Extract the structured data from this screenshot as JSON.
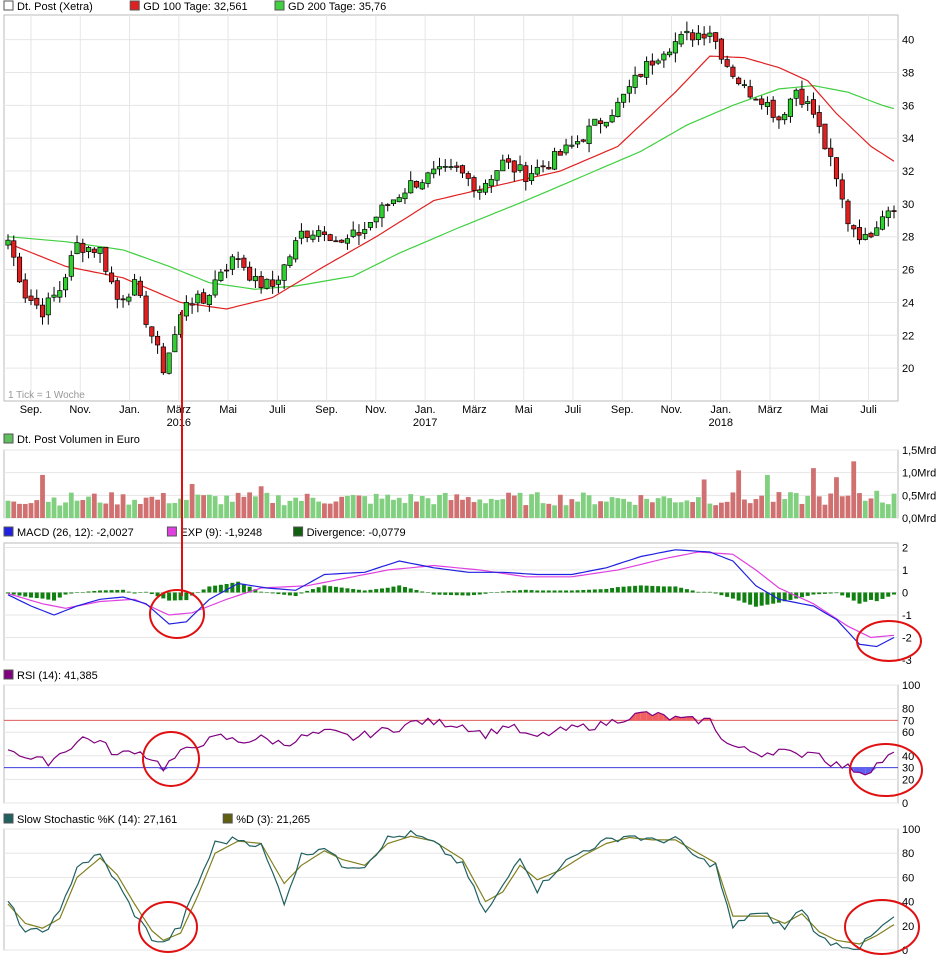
{
  "watermark": "1 Tick = 1 Woche",
  "chart_data": [
    {
      "type": "candlestick",
      "panel": "price",
      "legend": [
        {
          "label": "Dt. Post (Xetra)",
          "color": "#ffffff"
        },
        {
          "label": "GD 100 Tage: 32,561",
          "color": "#e02020"
        },
        {
          "label": "GD 200 Tage: 35,76",
          "color": "#40d040"
        }
      ],
      "y_ticks": [
        "20",
        "22",
        "24",
        "26",
        "28",
        "30",
        "32",
        "34",
        "36",
        "38",
        "40"
      ],
      "ylim": [
        18,
        41.5
      ],
      "x_month_labels": [
        "Sep.",
        "Nov.",
        "Jan.",
        "März",
        "Mai",
        "Juli",
        "Sep.",
        "Nov.",
        "Jan.",
        "März",
        "Mai",
        "Juli",
        "Sep.",
        "Nov.",
        "Jan.",
        "März",
        "Mai",
        "Juli"
      ],
      "x_year_labels": [
        {
          "text": "2016",
          "at_month": 3
        },
        {
          "text": "2017",
          "at_month": 8
        },
        {
          "text": "2018",
          "at_month": 14
        }
      ],
      "weeks": 155,
      "close_anchors": [
        [
          0,
          27.8
        ],
        [
          3,
          24.5
        ],
        [
          6,
          23.5
        ],
        [
          9,
          24.8
        ],
        [
          12,
          27.5
        ],
        [
          16,
          27.2
        ],
        [
          19,
          24.2
        ],
        [
          22,
          25.0
        ],
        [
          25,
          22.0
        ],
        [
          27,
          20.0
        ],
        [
          29,
          22.0
        ],
        [
          31,
          24.2
        ],
        [
          34,
          24.0
        ],
        [
          37,
          26.0
        ],
        [
          40,
          26.8
        ],
        [
          43,
          25.2
        ],
        [
          46,
          25.0
        ],
        [
          48,
          26.2
        ],
        [
          51,
          28.2
        ],
        [
          55,
          28.5
        ],
        [
          58,
          27.5
        ],
        [
          62,
          28.5
        ],
        [
          66,
          30.0
        ],
        [
          70,
          31.2
        ],
        [
          74,
          31.8
        ],
        [
          78,
          32.0
        ],
        [
          82,
          31.0
        ],
        [
          86,
          32.5
        ],
        [
          90,
          31.8
        ],
        [
          94,
          32.5
        ],
        [
          98,
          33.5
        ],
        [
          102,
          34.8
        ],
        [
          106,
          36.0
        ],
        [
          110,
          38.0
        ],
        [
          114,
          39.5
        ],
        [
          118,
          40.2
        ],
        [
          122,
          40.6
        ],
        [
          125,
          38.5
        ],
        [
          128,
          37.0
        ],
        [
          131,
          36.5
        ],
        [
          134,
          35.2
        ],
        [
          137,
          37.0
        ],
        [
          140,
          35.5
        ],
        [
          143,
          32.5
        ],
        [
          146,
          29.0
        ],
        [
          149,
          27.8
        ],
        [
          152,
          29.5
        ],
        [
          154,
          30.0
        ]
      ],
      "gd100_anchors": [
        [
          0,
          27.6
        ],
        [
          10,
          26.2
        ],
        [
          20,
          25.5
        ],
        [
          30,
          24.0
        ],
        [
          38,
          23.6
        ],
        [
          46,
          24.3
        ],
        [
          54,
          26.0
        ],
        [
          64,
          28.0
        ],
        [
          74,
          30.2
        ],
        [
          86,
          31.2
        ],
        [
          96,
          32.0
        ],
        [
          106,
          33.5
        ],
        [
          116,
          36.8
        ],
        [
          122,
          39.0
        ],
        [
          128,
          38.9
        ],
        [
          134,
          38.3
        ],
        [
          139,
          37.5
        ],
        [
          144,
          35.5
        ],
        [
          150,
          33.5
        ],
        [
          154,
          32.6
        ]
      ],
      "gd200_anchors": [
        [
          0,
          28.0
        ],
        [
          10,
          27.7
        ],
        [
          20,
          27.2
        ],
        [
          28,
          26.2
        ],
        [
          35,
          25.2
        ],
        [
          43,
          24.8
        ],
        [
          50,
          25.0
        ],
        [
          60,
          25.6
        ],
        [
          68,
          27.0
        ],
        [
          78,
          28.5
        ],
        [
          90,
          30.2
        ],
        [
          100,
          31.7
        ],
        [
          110,
          33.2
        ],
        [
          118,
          34.8
        ],
        [
          126,
          36.0
        ],
        [
          134,
          37.0
        ],
        [
          140,
          37.2
        ],
        [
          146,
          36.8
        ],
        [
          152,
          36.0
        ],
        [
          154,
          35.8
        ]
      ]
    },
    {
      "type": "bar",
      "panel": "volume",
      "legend": [
        {
          "label": "Dt. Post Volumen in Euro",
          "color": "#60c060"
        }
      ],
      "y_ticks": [
        "0,0Mrd",
        "0,5Mrd",
        "1,0Mrd",
        "1,5Mrd"
      ],
      "ylim": [
        0,
        1.5
      ],
      "base_level": 0.5,
      "spikes": [
        [
          6,
          0.95
        ],
        [
          32,
          0.75
        ],
        [
          44,
          0.7
        ],
        [
          121,
          0.85
        ],
        [
          127,
          1.05
        ],
        [
          132,
          0.95
        ],
        [
          140,
          1.1
        ],
        [
          144,
          0.9
        ],
        [
          147,
          1.25
        ],
        [
          151,
          0.6
        ]
      ]
    },
    {
      "type": "line",
      "panel": "macd",
      "legend": [
        {
          "label": "MACD (26, 12): -2,0027",
          "color": "#2020e0"
        },
        {
          "label": "EXP (9): -1,9248",
          "color": "#e040e0"
        },
        {
          "label": "Divergence: -0,0779",
          "color": "#106010"
        }
      ],
      "y_ticks": [
        "-3",
        "-2",
        "-1",
        "0",
        "1",
        "2"
      ],
      "ylim": [
        -3,
        2.2
      ],
      "macd_anchors": [
        [
          0,
          -0.1
        ],
        [
          4,
          -0.6
        ],
        [
          8,
          -1.0
        ],
        [
          12,
          -0.6
        ],
        [
          16,
          -0.3
        ],
        [
          20,
          -0.2
        ],
        [
          24,
          -0.5
        ],
        [
          28,
          -1.4
        ],
        [
          31,
          -1.3
        ],
        [
          35,
          -0.3
        ],
        [
          40,
          0.4
        ],
        [
          45,
          0.2
        ],
        [
          50,
          0.1
        ],
        [
          55,
          0.8
        ],
        [
          62,
          0.9
        ],
        [
          68,
          1.4
        ],
        [
          74,
          1.1
        ],
        [
          80,
          0.9
        ],
        [
          86,
          0.9
        ],
        [
          92,
          0.8
        ],
        [
          98,
          0.8
        ],
        [
          104,
          1.1
        ],
        [
          110,
          1.6
        ],
        [
          116,
          1.9
        ],
        [
          122,
          1.8
        ],
        [
          126,
          1.4
        ],
        [
          130,
          0.3
        ],
        [
          134,
          -0.3
        ],
        [
          140,
          -0.6
        ],
        [
          144,
          -1.2
        ],
        [
          148,
          -2.3
        ],
        [
          151,
          -2.4
        ],
        [
          154,
          -2.0
        ]
      ],
      "signal_anchors": [
        [
          0,
          -0.05
        ],
        [
          6,
          -0.5
        ],
        [
          10,
          -0.7
        ],
        [
          16,
          -0.4
        ],
        [
          22,
          -0.3
        ],
        [
          28,
          -1.0
        ],
        [
          32,
          -0.9
        ],
        [
          38,
          -0.3
        ],
        [
          44,
          0.2
        ],
        [
          52,
          0.3
        ],
        [
          58,
          0.6
        ],
        [
          66,
          1.0
        ],
        [
          74,
          1.2
        ],
        [
          82,
          1.0
        ],
        [
          90,
          0.7
        ],
        [
          98,
          0.7
        ],
        [
          106,
          1.0
        ],
        [
          114,
          1.5
        ],
        [
          120,
          1.8
        ],
        [
          126,
          1.7
        ],
        [
          130,
          1.0
        ],
        [
          134,
          0.2
        ],
        [
          140,
          -0.5
        ],
        [
          146,
          -1.5
        ],
        [
          150,
          -2.0
        ],
        [
          154,
          -1.9
        ]
      ]
    },
    {
      "type": "line",
      "panel": "rsi",
      "legend": [
        {
          "label": "RSI (14): 41,385",
          "color": "#800080"
        }
      ],
      "y_ticks": [
        "0",
        "20",
        "30",
        "40",
        "60",
        "70",
        "80",
        "100"
      ],
      "ylim": [
        0,
        100
      ],
      "upper": 70,
      "lower": 30,
      "rsi_anchors": [
        [
          0,
          47
        ],
        [
          4,
          37
        ],
        [
          7,
          35
        ],
        [
          10,
          45
        ],
        [
          13,
          55
        ],
        [
          16,
          52
        ],
        [
          19,
          40
        ],
        [
          22,
          45
        ],
        [
          25,
          38
        ],
        [
          27,
          30
        ],
        [
          30,
          42
        ],
        [
          33,
          50
        ],
        [
          37,
          56
        ],
        [
          40,
          52
        ],
        [
          44,
          55
        ],
        [
          48,
          50
        ],
        [
          52,
          57
        ],
        [
          56,
          60
        ],
        [
          60,
          55
        ],
        [
          64,
          60
        ],
        [
          68,
          64
        ],
        [
          71,
          69
        ],
        [
          75,
          68
        ],
        [
          79,
          66
        ],
        [
          83,
          58
        ],
        [
          87,
          66
        ],
        [
          91,
          55
        ],
        [
          95,
          60
        ],
        [
          99,
          64
        ],
        [
          103,
          66
        ],
        [
          107,
          72
        ],
        [
          111,
          76
        ],
        [
          115,
          72
        ],
        [
          118,
          70
        ],
        [
          122,
          70
        ],
        [
          125,
          50
        ],
        [
          128,
          45
        ],
        [
          131,
          42
        ],
        [
          134,
          45
        ],
        [
          137,
          40
        ],
        [
          140,
          45
        ],
        [
          143,
          34
        ],
        [
          146,
          30
        ],
        [
          149,
          26
        ],
        [
          152,
          36
        ],
        [
          154,
          41
        ]
      ]
    },
    {
      "type": "line",
      "panel": "stochastic",
      "legend": [
        {
          "label": "Slow Stochastic %K (14): 27,161",
          "color": "#206060"
        },
        {
          "label": "%D (3): 21,265",
          "color": "#606010"
        }
      ],
      "y_ticks": [
        "0",
        "20",
        "40",
        "60",
        "80",
        "100"
      ],
      "ylim": [
        0,
        100
      ],
      "k_anchors": [
        [
          0,
          40
        ],
        [
          3,
          15
        ],
        [
          6,
          15
        ],
        [
          9,
          30
        ],
        [
          12,
          70
        ],
        [
          16,
          78
        ],
        [
          19,
          55
        ],
        [
          22,
          30
        ],
        [
          25,
          10
        ],
        [
          27,
          5
        ],
        [
          30,
          20
        ],
        [
          33,
          55
        ],
        [
          36,
          88
        ],
        [
          40,
          92
        ],
        [
          44,
          86
        ],
        [
          48,
          40
        ],
        [
          51,
          78
        ],
        [
          55,
          86
        ],
        [
          58,
          70
        ],
        [
          62,
          70
        ],
        [
          66,
          92
        ],
        [
          70,
          96
        ],
        [
          74,
          88
        ],
        [
          79,
          70
        ],
        [
          83,
          30
        ],
        [
          86,
          52
        ],
        [
          89,
          78
        ],
        [
          92,
          50
        ],
        [
          96,
          70
        ],
        [
          100,
          82
        ],
        [
          104,
          90
        ],
        [
          108,
          95
        ],
        [
          112,
          90
        ],
        [
          116,
          92
        ],
        [
          120,
          75
        ],
        [
          123,
          70
        ],
        [
          126,
          18
        ],
        [
          129,
          30
        ],
        [
          132,
          28
        ],
        [
          135,
          18
        ],
        [
          138,
          35
        ],
        [
          141,
          10
        ],
        [
          144,
          5
        ],
        [
          148,
          2
        ],
        [
          151,
          15
        ],
        [
          154,
          27
        ]
      ],
      "d_anchors": [
        [
          0,
          38
        ],
        [
          3,
          22
        ],
        [
          6,
          18
        ],
        [
          9,
          26
        ],
        [
          12,
          60
        ],
        [
          16,
          76
        ],
        [
          19,
          62
        ],
        [
          22,
          38
        ],
        [
          25,
          16
        ],
        [
          27,
          8
        ],
        [
          30,
          14
        ],
        [
          33,
          45
        ],
        [
          36,
          80
        ],
        [
          40,
          90
        ],
        [
          44,
          88
        ],
        [
          48,
          55
        ],
        [
          51,
          70
        ],
        [
          55,
          82
        ],
        [
          58,
          75
        ],
        [
          62,
          70
        ],
        [
          66,
          88
        ],
        [
          70,
          94
        ],
        [
          74,
          90
        ],
        [
          79,
          75
        ],
        [
          83,
          40
        ],
        [
          86,
          48
        ],
        [
          89,
          70
        ],
        [
          92,
          58
        ],
        [
          96,
          66
        ],
        [
          100,
          78
        ],
        [
          104,
          88
        ],
        [
          108,
          93
        ],
        [
          112,
          91
        ],
        [
          116,
          91
        ],
        [
          120,
          80
        ],
        [
          123,
          72
        ],
        [
          126,
          28
        ],
        [
          129,
          28
        ],
        [
          132,
          28
        ],
        [
          135,
          22
        ],
        [
          138,
          30
        ],
        [
          141,
          15
        ],
        [
          144,
          8
        ],
        [
          148,
          5
        ],
        [
          151,
          12
        ],
        [
          154,
          21
        ]
      ]
    }
  ]
}
